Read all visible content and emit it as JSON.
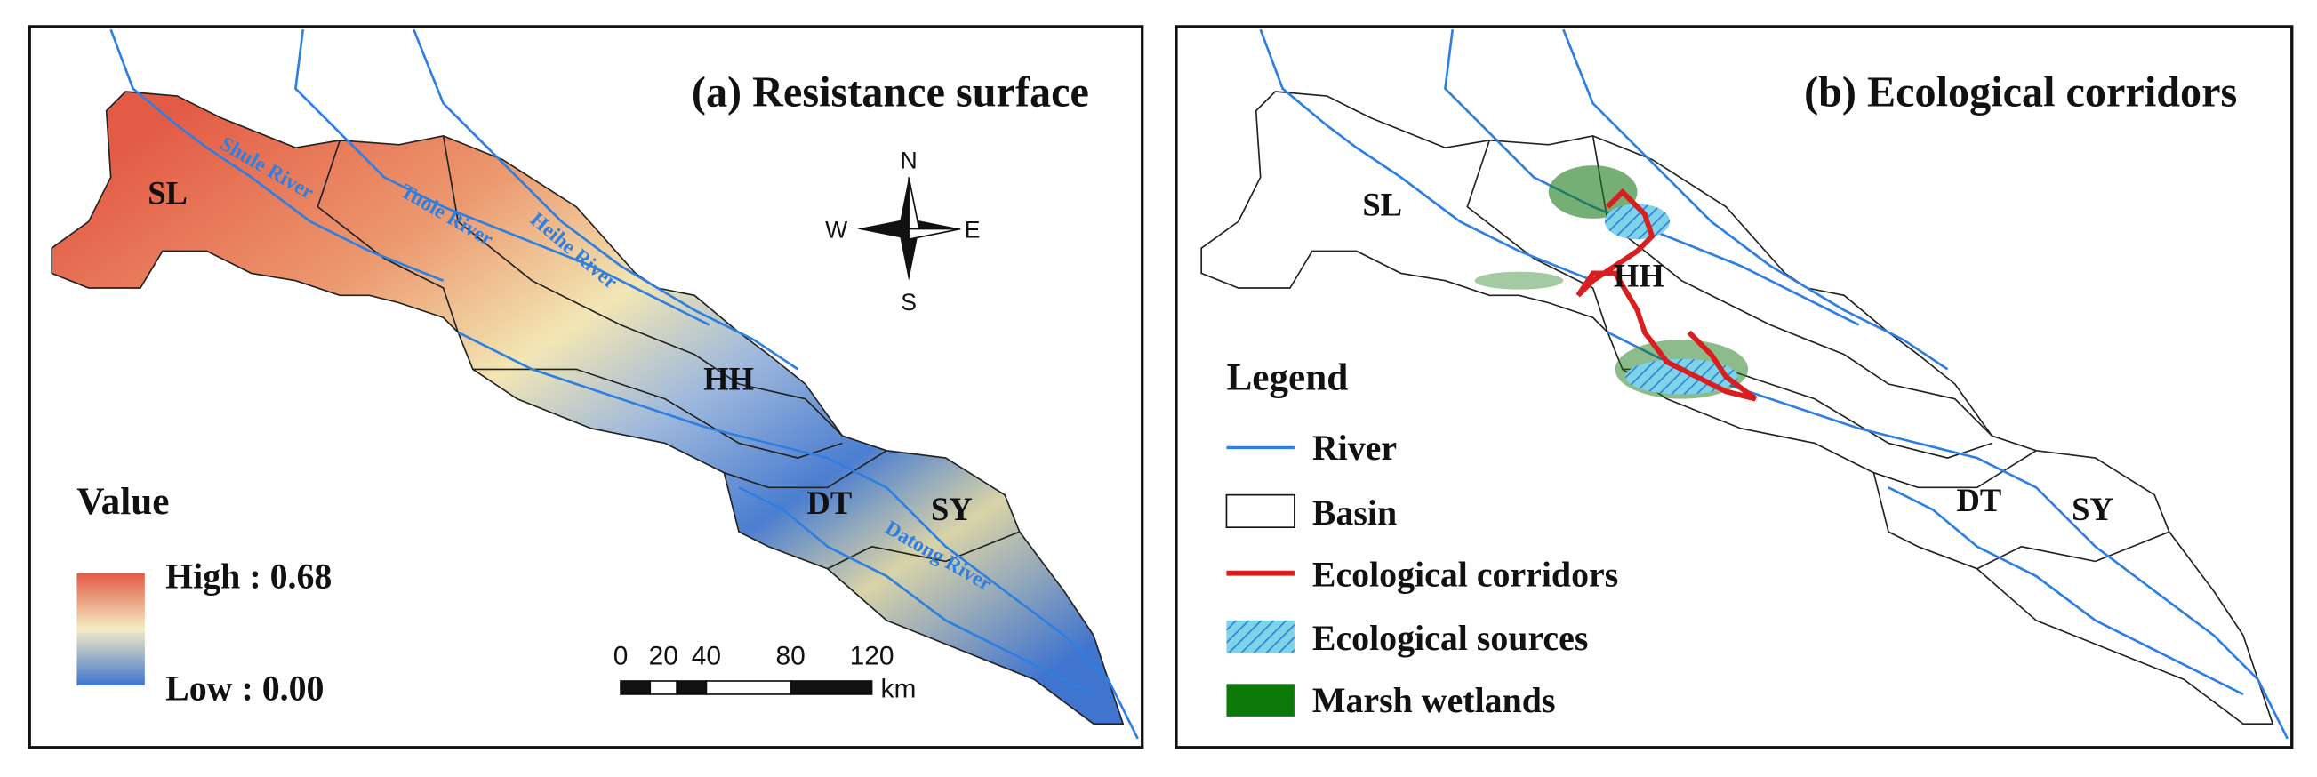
{
  "panel_a": {
    "title": "(a) Resistance surface",
    "basins": [
      "SL",
      "HH",
      "DT",
      "SY"
    ],
    "rivers": [
      "Shule River",
      "Tuole River",
      "Heihe River",
      "Datong River"
    ],
    "compass": {
      "north": "N",
      "south": "S",
      "west": "W",
      "east": "E"
    },
    "legend": {
      "title": "Value",
      "high": "High : 0.68",
      "low": "Low : 0.00"
    },
    "scale_bar": {
      "labels": [
        "0",
        "20",
        "40",
        "80",
        "120"
      ],
      "unit": "km"
    }
  },
  "panel_b": {
    "title": "(b) Ecological corridors",
    "basins": [
      "SL",
      "HH",
      "DT",
      "SY"
    ],
    "legend": {
      "title": "Legend",
      "items": [
        "River",
        "Basin",
        "Ecological corridors",
        "Ecological sources",
        "Marsh wetlands"
      ]
    }
  }
}
